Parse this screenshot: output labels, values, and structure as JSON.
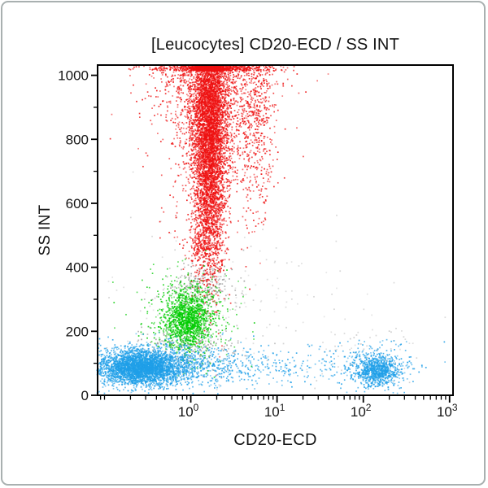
{
  "chart_data": {
    "type": "scatter",
    "title": "[Leucocytes] CD20-ECD / SS INT",
    "xlabel": "CD20-ECD",
    "ylabel": "SS INT",
    "x_scale": "log10",
    "x_range_log10": [
      -1.08,
      3.04
    ],
    "x_tick_base": "10",
    "x_major_ticks": [
      {
        "log10": 0,
        "exp": "0"
      },
      {
        "log10": 1,
        "exp": "1"
      },
      {
        "log10": 2,
        "exp": "2"
      },
      {
        "log10": 3,
        "exp": "3"
      }
    ],
    "y_range": [
      0,
      1032
    ],
    "y_major_ticks": [
      0,
      200,
      400,
      600,
      800,
      1000
    ],
    "y_minor_step": 100,
    "grid": false,
    "legend": false,
    "dot_size": 1.7,
    "seed": 1337,
    "colors": {
      "granulocytes": "#ee1111",
      "monocytes": "#00cc00",
      "lymphocytes": "#1f9fe8",
      "debris": "#9a9a9a",
      "axis": "#000000",
      "frame": "#a9b0b0",
      "background": "#ffffff"
    },
    "populations": [
      {
        "name": "debris-upper-junction",
        "color": "debris",
        "n": 240,
        "cx_log10": 0.12,
        "sx_log10": 0.2,
        "cy": 345,
        "sy": 38
      },
      {
        "name": "debris-mid-junction",
        "color": "debris",
        "n": 220,
        "cx_log10": -0.05,
        "sx_log10": 0.32,
        "cy": 155,
        "sy": 35
      },
      {
        "name": "debris-scatter",
        "color": "debris",
        "n": 190,
        "cx_log10": 0.45,
        "sx_log10": 0.85,
        "cy": 260,
        "sy": 150,
        "alpha": 0.45
      },
      {
        "name": "debris-right",
        "color": "debris",
        "n": 70,
        "cx_log10": 2.1,
        "sx_log10": 0.3,
        "cy": 135,
        "sy": 45,
        "alpha": 0.5
      },
      {
        "name": "granulocytes-core",
        "color": "granulocytes",
        "n": 4800,
        "cx_log10": 0.21,
        "sx_log10": 0.095,
        "cy": 800,
        "sy": 205,
        "clip_top": true
      },
      {
        "name": "granulocytes-mid-spread",
        "color": "granulocytes",
        "n": 1600,
        "cx_log10": 0.22,
        "sx_log10": 0.21,
        "cy": 900,
        "sy": 150,
        "clip_top": true
      },
      {
        "name": "granulocytes-top-spread",
        "color": "granulocytes",
        "n": 800,
        "cx_log10": 0.22,
        "sx_log10": 0.4,
        "cy": 990,
        "sy": 95,
        "clip_top": true
      },
      {
        "name": "granulocytes-right-streak",
        "color": "granulocytes",
        "n": 480,
        "cx_log10": 0.75,
        "sx_log10": 0.11,
        "cy": 840,
        "sy": 160,
        "clip_top": true
      },
      {
        "name": "granulocytes-lower-tail",
        "color": "granulocytes",
        "n": 260,
        "cx_log10": 0.13,
        "sx_log10": 0.11,
        "cy": 470,
        "sy": 55
      },
      {
        "name": "monocytes-core",
        "color": "monocytes",
        "n": 1150,
        "cx_log10": -0.05,
        "sx_log10": 0.13,
        "cy": 240,
        "sy": 45
      },
      {
        "name": "monocytes-halo",
        "color": "monocytes",
        "n": 420,
        "cx_log10": -0.05,
        "sx_log10": 0.27,
        "cy": 245,
        "sy": 75
      },
      {
        "name": "lymphocytes-core",
        "color": "lymphocytes",
        "n": 3000,
        "cx_log10": -0.58,
        "sx_log10": 0.24,
        "cy": 88,
        "sy": 27
      },
      {
        "name": "lymphocytes-band",
        "color": "lymphocytes",
        "n": 950,
        "cx_log10": -0.25,
        "sx_log10": 0.52,
        "cy": 96,
        "sy": 34
      },
      {
        "name": "lymphocytes-bridge",
        "color": "lymphocytes",
        "n": 260,
        "cx_log10": 0.8,
        "sx_log10": 0.75,
        "cy": 95,
        "sy": 28
      },
      {
        "name": "b-cells-core",
        "color": "lymphocytes",
        "n": 720,
        "cx_log10": 2.16,
        "sx_log10": 0.13,
        "cy": 78,
        "sy": 22
      },
      {
        "name": "b-cells-halo",
        "color": "lymphocytes",
        "n": 260,
        "cx_log10": 2.12,
        "sx_log10": 0.24,
        "cy": 90,
        "sy": 36
      }
    ]
  }
}
